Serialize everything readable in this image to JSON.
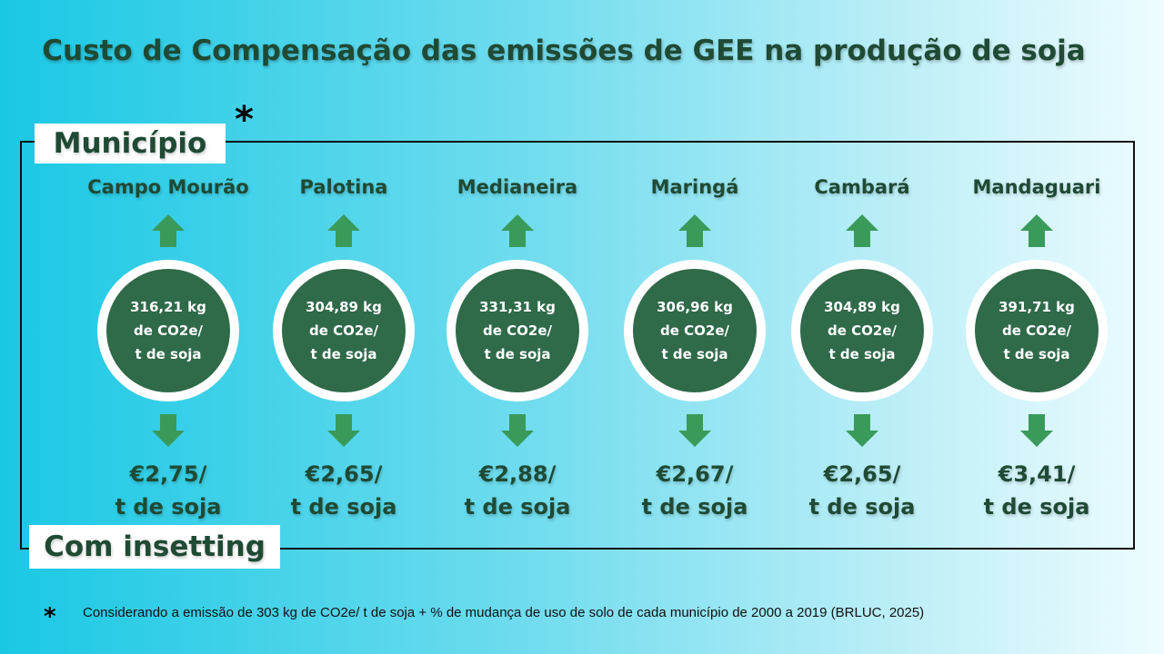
{
  "title": "Custo de Compensação das emissões de GEE na produção de soja",
  "asterisk": "*",
  "label_top": "Município",
  "label_bottom": "Com insetting",
  "arrow_color": "#3a9a5a",
  "circle_color": "#2f6a49",
  "municipios": [
    {
      "name": "Campo Mourão",
      "emission_line1": "316,21 kg",
      "emission_line2": "de CO2e/",
      "emission_line3": "t de soja",
      "price_line1": "€2,75/",
      "price_line2": "t de soja"
    },
    {
      "name": "Palotina",
      "emission_line1": "304,89 kg",
      "emission_line2": "de CO2e/",
      "emission_line3": "t de soja",
      "price_line1": "€2,65/",
      "price_line2": "t de soja"
    },
    {
      "name": "Medianeira",
      "emission_line1": "331,31  kg",
      "emission_line2": "de CO2e/",
      "emission_line3": "t de soja",
      "price_line1": "€2,88/",
      "price_line2": "t de soja"
    },
    {
      "name": "Maringá",
      "emission_line1": "306,96  kg",
      "emission_line2": "de CO2e/",
      "emission_line3": "t de soja",
      "price_line1": "€2,67/",
      "price_line2": "t de soja"
    },
    {
      "name": "Cambará",
      "emission_line1": "304,89  kg",
      "emission_line2": "de CO2e/",
      "emission_line3": "t de soja",
      "price_line1": "€2,65/",
      "price_line2": "t de soja"
    },
    {
      "name": "Mandaguari",
      "emission_line1": "391,71  kg",
      "emission_line2": "de CO2e/",
      "emission_line3": "t de soja",
      "price_line1": "€3,41/",
      "price_line2": "t de soja"
    }
  ],
  "footnote": "Considerando a emissão de 303 kg de CO2e/ t de soja + % de mudança de uso de solo de cada município de 2000 a 2019  (BRLUC, 2025)"
}
